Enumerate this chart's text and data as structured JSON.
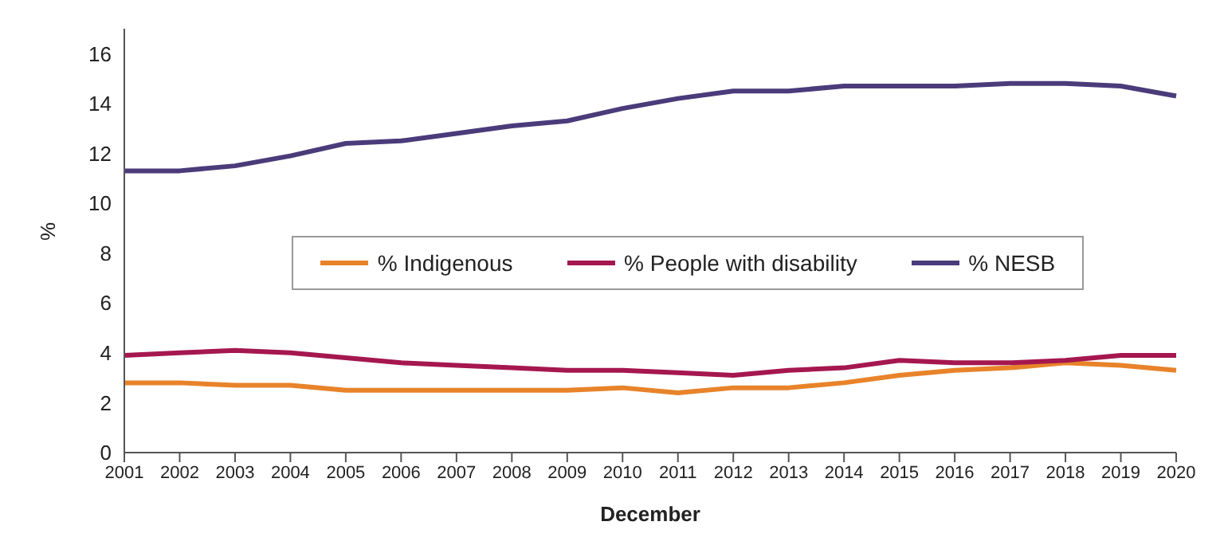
{
  "chart_data": {
    "type": "line",
    "xlabel": "December",
    "ylabel": "%",
    "categories": [
      "2001",
      "2002",
      "2003",
      "2004",
      "2005",
      "2006",
      "2007",
      "2008",
      "2009",
      "2010",
      "2011",
      "2012",
      "2013",
      "2014",
      "2015",
      "2016",
      "2017",
      "2018",
      "2019",
      "2020"
    ],
    "series": [
      {
        "name": "% Indigenous",
        "color": "#e8832a",
        "values": [
          2.8,
          2.8,
          2.7,
          2.7,
          2.5,
          2.5,
          2.5,
          2.5,
          2.5,
          2.6,
          2.4,
          2.6,
          2.6,
          2.8,
          3.1,
          3.3,
          3.4,
          3.6,
          3.5,
          3.3
        ]
      },
      {
        "name": "% People with disability",
        "color": "#a5174f",
        "values": [
          3.9,
          4.0,
          4.1,
          4.0,
          3.8,
          3.6,
          3.5,
          3.4,
          3.3,
          3.3,
          3.2,
          3.1,
          3.3,
          3.4,
          3.7,
          3.6,
          3.6,
          3.7,
          3.9,
          3.9
        ]
      },
      {
        "name": "% NESB",
        "color": "#4b3b7a",
        "values": [
          11.3,
          11.3,
          11.5,
          11.9,
          12.4,
          12.5,
          12.8,
          13.1,
          13.3,
          13.8,
          14.2,
          14.5,
          14.5,
          14.7,
          14.7,
          14.7,
          14.8,
          14.8,
          14.7,
          14.3
        ]
      }
    ],
    "ylim": [
      0,
      17
    ],
    "yticks": [
      0,
      2,
      4,
      6,
      8,
      10,
      12,
      14,
      16
    ],
    "legend": "center",
    "marker": "none",
    "line_style": "solid"
  }
}
